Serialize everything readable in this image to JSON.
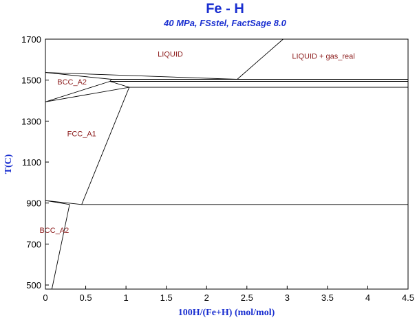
{
  "chart_data": {
    "type": "line",
    "title": "Fe - H",
    "subtitle": "40 MPa, FSstel, FactSage 8.0",
    "xlabel": "100H/(Fe+H) (mol/mol)",
    "ylabel": "T(C)",
    "xlim": [
      0,
      4.5
    ],
    "ylim": [
      480,
      1700
    ],
    "x_ticks": [
      {
        "value": 0,
        "label": "0"
      },
      {
        "value": 0.5,
        "label": "0.5"
      },
      {
        "value": 1,
        "label": "1"
      },
      {
        "value": 1.5,
        "label": "1.5"
      },
      {
        "value": 2,
        "label": "2"
      },
      {
        "value": 2.5,
        "label": "2.5"
      },
      {
        "value": 3,
        "label": "3"
      },
      {
        "value": 3.5,
        "label": "3.5"
      },
      {
        "value": 4,
        "label": "4"
      },
      {
        "value": 4.5,
        "label": "4.5"
      }
    ],
    "y_ticks": [
      {
        "value": 500,
        "label": "500"
      },
      {
        "value": 700,
        "label": "700"
      },
      {
        "value": 900,
        "label": "900"
      },
      {
        "value": 1100,
        "label": "1100"
      },
      {
        "value": 1300,
        "label": "1300"
      },
      {
        "value": 1500,
        "label": "1500"
      },
      {
        "value": 1700,
        "label": "1700"
      }
    ],
    "boundaries": [
      {
        "points": [
          [
            0,
            1537
          ],
          [
            2.38,
            1504
          ]
        ]
      },
      {
        "points": [
          [
            0,
            1537
          ],
          [
            0.82,
            1504
          ]
        ]
      },
      {
        "points": [
          [
            0.82,
            1504
          ],
          [
            0.8,
            1494
          ]
        ]
      },
      {
        "points": [
          [
            0,
            1394
          ],
          [
            0.8,
            1494
          ]
        ]
      },
      {
        "points": [
          [
            0,
            1394
          ],
          [
            1.04,
            1465
          ]
        ]
      },
      {
        "points": [
          [
            0.8,
            1494
          ],
          [
            1.04,
            1465
          ]
        ]
      },
      {
        "points": [
          [
            0.82,
            1504
          ],
          [
            4.5,
            1504
          ]
        ]
      },
      {
        "points": [
          [
            0.8,
            1494
          ],
          [
            4.5,
            1494
          ]
        ]
      },
      {
        "points": [
          [
            1.04,
            1465
          ],
          [
            4.5,
            1465
          ]
        ]
      },
      {
        "points": [
          [
            2.38,
            1504
          ],
          [
            2.95,
            1700
          ]
        ]
      },
      {
        "points": [
          [
            1.04,
            1465
          ],
          [
            0.45,
            893
          ]
        ]
      },
      {
        "points": [
          [
            0,
            912
          ],
          [
            0.45,
            893
          ]
        ]
      },
      {
        "points": [
          [
            0.45,
            893
          ],
          [
            4.5,
            893
          ]
        ]
      },
      {
        "points": [
          [
            0,
            912
          ],
          [
            0.3,
            893
          ]
        ]
      },
      {
        "points": [
          [
            0.3,
            893
          ],
          [
            0.08,
            480
          ]
        ]
      }
    ],
    "region_labels": [
      {
        "text": "LIQUID",
        "x": 1.55,
        "y": 1615
      },
      {
        "text": "LIQUID + gas_real",
        "x": 3.45,
        "y": 1605
      },
      {
        "text": "BCC_A2",
        "x": 0.33,
        "y": 1478
      },
      {
        "text": "FCC_A1",
        "x": 0.45,
        "y": 1225
      },
      {
        "text": "BCC_A2",
        "x": 0.11,
        "y": 755
      }
    ]
  }
}
